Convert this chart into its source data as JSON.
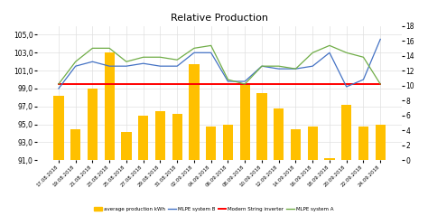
{
  "title": "Relative Production",
  "dates": [
    "17.08.2018",
    "19.08.2018",
    "21.08.2018",
    "23.08.2018",
    "25.08.2018",
    "27.08.2018",
    "29.08.2018",
    "31.08.2018",
    "02.09.2018",
    "04.09.2018",
    "06.09.2018",
    "08.09.2018",
    "10.09.2018",
    "12.09.2018",
    "14.09.2018",
    "16.09.2018",
    "18.09.2018",
    "20.09.2018",
    "22.09.2018",
    "24.09.2018"
  ],
  "bar_values": [
    98.2,
    94.5,
    99.0,
    103.0,
    94.2,
    96.0,
    96.5,
    96.2,
    101.7,
    94.8,
    95.0,
    99.5,
    98.5,
    96.8,
    94.5,
    94.8,
    91.2,
    97.2,
    94.8,
    95.0
  ],
  "mlpe_b": [
    99.0,
    101.5,
    102.0,
    101.5,
    101.5,
    101.8,
    101.5,
    101.5,
    103.0,
    103.0,
    99.8,
    99.8,
    101.5,
    101.2,
    101.2,
    101.5,
    103.0,
    99.2,
    100.0,
    104.5
  ],
  "modern_string": [
    99.5,
    99.5,
    99.5,
    99.5,
    99.5,
    99.5,
    99.5,
    99.5,
    99.5,
    99.5,
    99.5,
    99.5,
    99.5,
    99.5,
    99.5,
    99.5,
    99.5,
    99.5,
    99.5,
    99.5
  ],
  "mlpe_a": [
    99.5,
    102.0,
    103.5,
    103.5,
    102.0,
    102.5,
    102.5,
    102.2,
    103.5,
    103.8,
    100.0,
    99.5,
    101.5,
    101.5,
    101.2,
    103.0,
    103.8,
    103.0,
    102.5,
    99.5
  ],
  "bar_color": "#FFC000",
  "mlpe_b_color": "#4472C4",
  "string_color": "#FF0000",
  "mlpe_a_color": "#70AD47",
  "ylim_left": [
    91.0,
    106.0
  ],
  "ylim_right": [
    0,
    18
  ],
  "yticks_left": [
    91.0,
    93.0,
    95.0,
    97.0,
    99.0,
    101.0,
    103.0,
    105.0
  ],
  "yticks_right": [
    0,
    2,
    4,
    6,
    8,
    10,
    12,
    14,
    16,
    18
  ],
  "background_color": "#FFFFFF",
  "grid_color": "#E0E0E0"
}
